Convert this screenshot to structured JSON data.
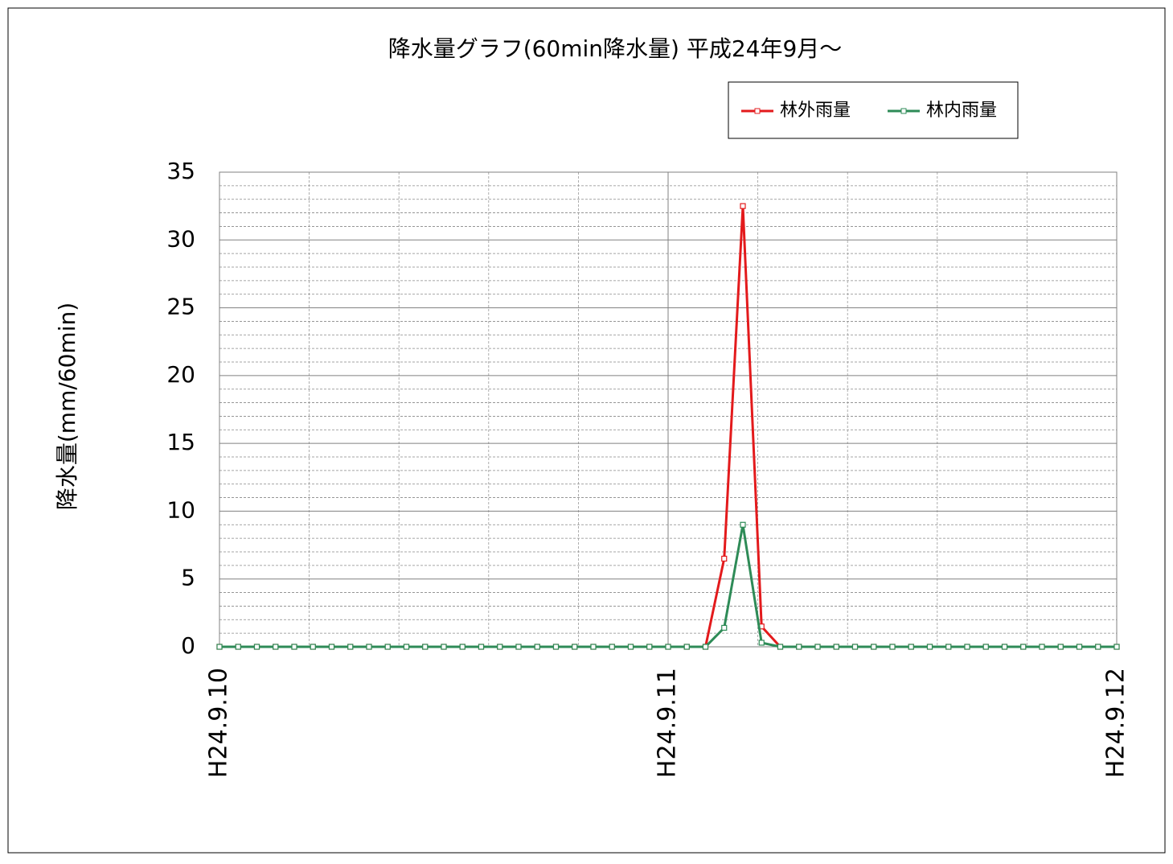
{
  "chart_data": {
    "type": "line",
    "title": "降水量グラフ(60min降水量) 平成24年9月～",
    "y_label": "降水量(mm/60min)",
    "categories": [
      "H24.9.10",
      null,
      null,
      null,
      null,
      null,
      null,
      null,
      null,
      null,
      null,
      null,
      null,
      null,
      null,
      null,
      null,
      null,
      null,
      null,
      null,
      null,
      null,
      null,
      "H24.9.11",
      null,
      null,
      null,
      null,
      null,
      null,
      null,
      null,
      null,
      null,
      null,
      null,
      null,
      null,
      null,
      null,
      null,
      null,
      null,
      null,
      null,
      null,
      null,
      "H24.9.12"
    ],
    "series": [
      {
        "name": "林外雨量",
        "color": "#e31a1c",
        "values": [
          0,
          0,
          0,
          0,
          0,
          0,
          0,
          0,
          0,
          0,
          0,
          0,
          0,
          0,
          0,
          0,
          0,
          0,
          0,
          0,
          0,
          0,
          0,
          0,
          0,
          0,
          0,
          6.5,
          32.5,
          1.5,
          0,
          0,
          0,
          0,
          0,
          0,
          0,
          0,
          0,
          0,
          0,
          0,
          0,
          0,
          0,
          0,
          0,
          0,
          0
        ]
      },
      {
        "name": "林内雨量",
        "color": "#2e8b57",
        "values": [
          0,
          0,
          0,
          0,
          0,
          0,
          0,
          0,
          0,
          0,
          0,
          0,
          0,
          0,
          0,
          0,
          0,
          0,
          0,
          0,
          0,
          0,
          0,
          0,
          0,
          0,
          0,
          1.4,
          9,
          0.3,
          0,
          0,
          0,
          0,
          0,
          0,
          0,
          0,
          0,
          0,
          0,
          0,
          0,
          0,
          0,
          0,
          0,
          0,
          0
        ]
      }
    ],
    "ylim": [
      0,
      35
    ],
    "yticks": [
      0,
      5,
      10,
      15,
      20,
      25,
      30,
      35
    ],
    "grid": true,
    "minor_grid": true,
    "legend": "top-right"
  }
}
